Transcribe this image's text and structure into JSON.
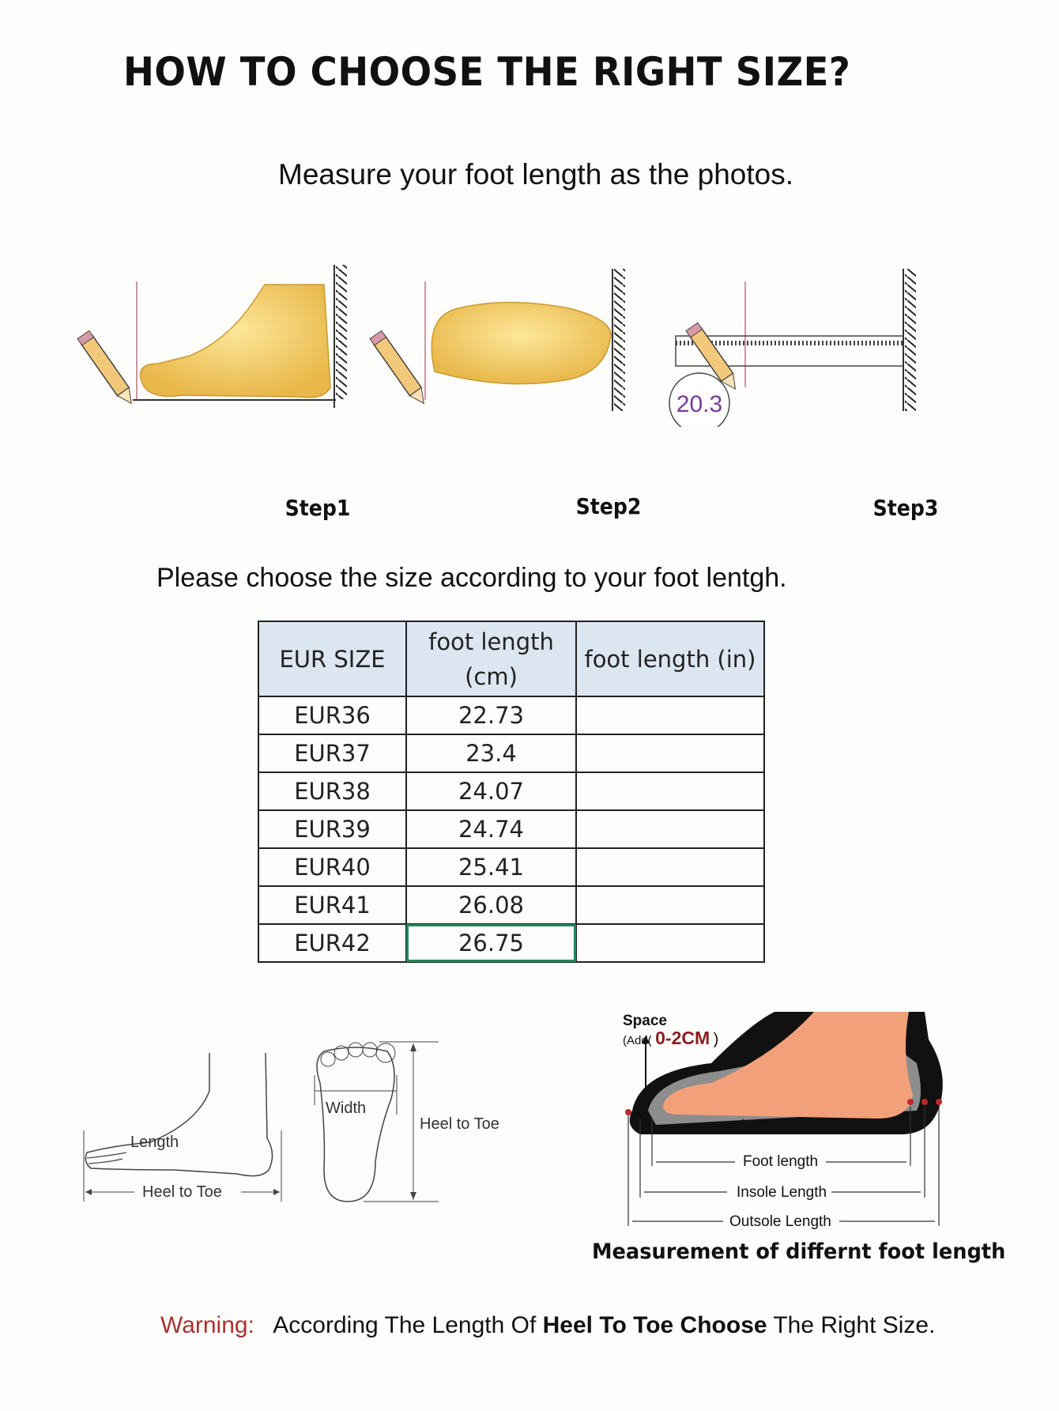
{
  "title": "HOW TO CHOOSE THE RIGHT SIZE?",
  "subtitle": "Measure your foot length as the photos.",
  "steps": [
    {
      "label": "Step1"
    },
    {
      "label": "Step2"
    },
    {
      "label": "Step3",
      "ruler_reading": "20.3"
    }
  ],
  "instruction": "Please choose the size according to your foot lentgh.",
  "size_table": {
    "headers": [
      "EUR SIZE",
      "foot length (cm)",
      "foot length (in)"
    ],
    "rows": [
      {
        "size": "EUR36",
        "cm": "22.73",
        "in": ""
      },
      {
        "size": "EUR37",
        "cm": "23.4",
        "in": ""
      },
      {
        "size": "EUR38",
        "cm": "24.07",
        "in": ""
      },
      {
        "size": "EUR39",
        "cm": "24.74",
        "in": ""
      },
      {
        "size": "EUR40",
        "cm": "25.41",
        "in": ""
      },
      {
        "size": "EUR41",
        "cm": "26.08",
        "in": ""
      },
      {
        "size": "EUR42",
        "cm": "26.75",
        "in": ""
      }
    ],
    "selected_cell": "EUR42 cm",
    "header_color": "#dce6f1",
    "selection_color": "#1e8a5a"
  },
  "diagram_side": {
    "length": "Length",
    "heel_to_toe": "Heel to Toe"
  },
  "diagram_sole": {
    "width": "Width",
    "heel_to_toe": "Heel to Toe"
  },
  "shoe_diagram": {
    "space": "Space",
    "add_prefix": "(Add(",
    "add_value": "0-2CM",
    "add_suffix": ")",
    "foot_length": "Foot length",
    "insole_length": "Insole Length",
    "outsole_length": "Outsole Length",
    "caption": "Measurement of differnt foot length"
  },
  "warning": {
    "label": "Warning:",
    "text1": "According The Length Of",
    "bold": "Heel To Toe Choose",
    "text2": "The Right Size.",
    "label_color": "#a83232"
  }
}
